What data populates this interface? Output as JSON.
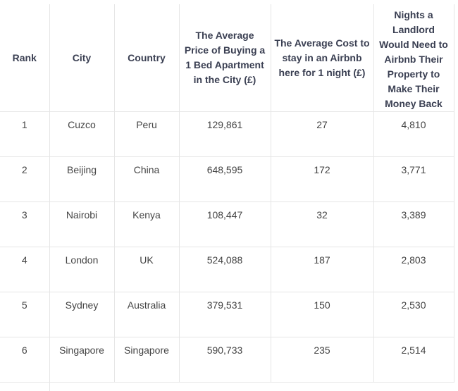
{
  "table": {
    "headers": {
      "rank": "Rank",
      "city": "City",
      "country": "Country",
      "price": "The Average Price of Buying a 1 Bed Apartment in the City (£)",
      "cost": "The Average Cost to stay in an Airbnb here for 1 night (£)",
      "nights": "Nights a Landlord Would Need to Airbnb Their Property to Make Their Money Back"
    },
    "rows": [
      {
        "rank": "1",
        "city": "Cuzco",
        "country": "Peru",
        "price": "129,861",
        "cost": "27",
        "nights": "4,810"
      },
      {
        "rank": "2",
        "city": "Beijing",
        "country": "China",
        "price": "648,595",
        "cost": "172",
        "nights": "3,771"
      },
      {
        "rank": "3",
        "city": "Nairobi",
        "country": "Kenya",
        "price": "108,447",
        "cost": "32",
        "nights": "3,389"
      },
      {
        "rank": "4",
        "city": "London",
        "country": "UK",
        "price": "524,088",
        "cost": "187",
        "nights": "2,803"
      },
      {
        "rank": "5",
        "city": "Sydney",
        "country": "Australia",
        "price": "379,531",
        "cost": "150",
        "nights": "2,530"
      },
      {
        "rank": "6",
        "city": "Singapore",
        "country": "Singapore",
        "price": "590,733",
        "cost": "235",
        "nights": "2,514"
      }
    ]
  },
  "colors": {
    "header_text": "#3a3f52",
    "cell_text": "#444444",
    "grid_line": "#e6e6e6"
  }
}
